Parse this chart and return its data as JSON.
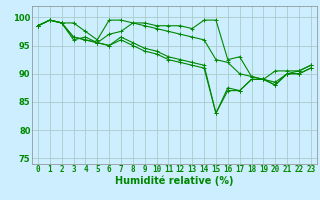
{
  "xlabel": "Humidité relative (%)",
  "background_color": "#cceeff",
  "grid_color": "#aacccc",
  "line_color": "#008800",
  "xlim": [
    -0.5,
    23.5
  ],
  "ylim": [
    74,
    102
  ],
  "yticks": [
    75,
    80,
    85,
    90,
    95,
    100
  ],
  "xtick_labels": [
    "0",
    "1",
    "2",
    "3",
    "4",
    "5",
    "6",
    "7",
    "8",
    "9",
    "10",
    "11",
    "12",
    "13",
    "14",
    "15",
    "16",
    "17",
    "18",
    "19",
    "20",
    "21",
    "22",
    "23"
  ],
  "series1": [
    98.5,
    99.5,
    99.0,
    99.0,
    97.5,
    96.0,
    99.5,
    99.5,
    99.0,
    99.0,
    98.5,
    98.5,
    98.5,
    98.0,
    99.5,
    99.5,
    92.5,
    93.0,
    89.5,
    89.0,
    90.5,
    90.5,
    90.5,
    91.5
  ],
  "series2": [
    98.5,
    99.5,
    99.0,
    96.0,
    96.5,
    95.5,
    97.0,
    97.5,
    99.0,
    98.5,
    98.0,
    97.5,
    97.0,
    96.5,
    96.0,
    92.5,
    92.0,
    90.0,
    89.5,
    89.0,
    88.5,
    90.0,
    90.5,
    91.5
  ],
  "series3": [
    98.5,
    99.5,
    99.0,
    96.5,
    96.0,
    95.5,
    95.0,
    96.5,
    95.5,
    94.5,
    94.0,
    93.0,
    92.5,
    92.0,
    91.5,
    83.0,
    87.5,
    87.0,
    89.0,
    89.0,
    88.0,
    90.0,
    90.0,
    91.0
  ],
  "series4": [
    98.5,
    99.5,
    99.0,
    96.5,
    96.0,
    95.5,
    95.0,
    96.0,
    95.0,
    94.0,
    93.5,
    92.5,
    92.0,
    91.5,
    91.0,
    83.0,
    87.0,
    87.0,
    89.0,
    89.0,
    88.0,
    90.0,
    90.0,
    91.0
  ],
  "marker": "+",
  "markersize": 3,
  "linewidth": 0.8,
  "xlabel_fontsize": 7,
  "tick_fontsize": 5.5
}
